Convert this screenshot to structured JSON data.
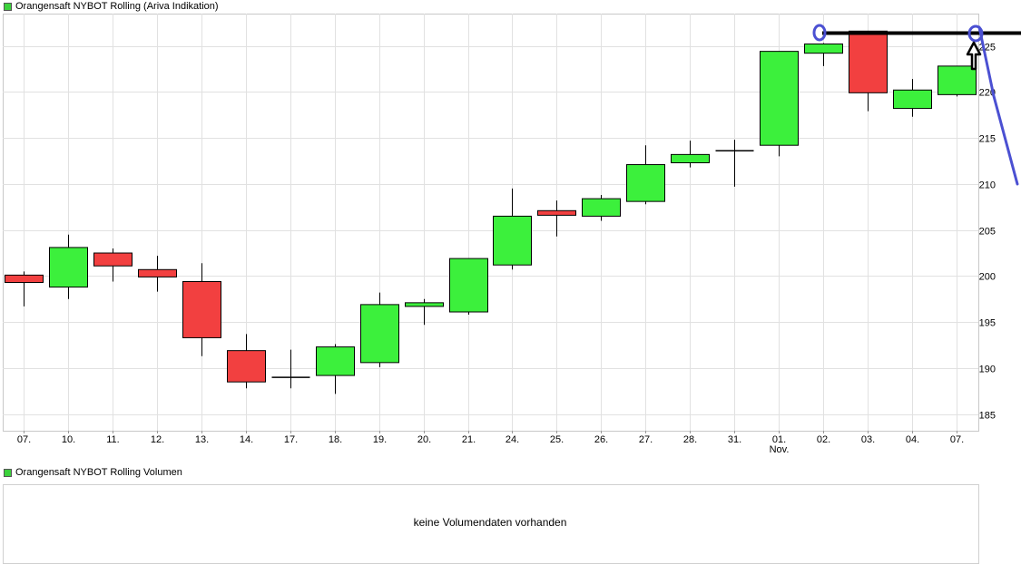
{
  "title": "Orangensaft NYBOT Rolling (Ariva Indikation)",
  "volume_title": "Orangensaft NYBOT Rolling Volumen",
  "volume_message": "keine Volumendaten vorhanden",
  "colors": {
    "up": "#3cf03c",
    "down": "#f24040",
    "legend_swatch": "#3cd23c",
    "annotation_black": "#000000",
    "annotation_blue": "#4b50d2",
    "grid": "#e1e1e1"
  },
  "chart_data": {
    "type": "candlestick",
    "title": "Orangensaft NYBOT Rolling (Ariva Indikation)",
    "x_sublabel": {
      "index": 17,
      "text": "Nov."
    },
    "y_ticks": [
      185,
      190,
      195,
      200,
      205,
      210,
      215,
      220,
      225
    ],
    "ylim": [
      183.2,
      228.5
    ],
    "grid": true,
    "candles": [
      {
        "date": "07.",
        "open": 200.1,
        "high": 200.5,
        "low": 196.7,
        "close": 199.3
      },
      {
        "date": "10.",
        "open": 198.8,
        "high": 204.5,
        "low": 197.5,
        "close": 203.1
      },
      {
        "date": "11.",
        "open": 202.5,
        "high": 203.0,
        "low": 199.4,
        "close": 201.1
      },
      {
        "date": "12.",
        "open": 200.7,
        "high": 202.2,
        "low": 198.3,
        "close": 199.9
      },
      {
        "date": "13.",
        "open": 199.4,
        "high": 201.4,
        "low": 191.3,
        "close": 193.3
      },
      {
        "date": "14.",
        "open": 191.9,
        "high": 193.7,
        "low": 187.8,
        "close": 188.5
      },
      {
        "date": "17.",
        "open": 189.0,
        "high": 192.0,
        "low": 187.8,
        "close": 189.0
      },
      {
        "date": "18.",
        "open": 189.2,
        "high": 192.6,
        "low": 187.2,
        "close": 192.3
      },
      {
        "date": "19.",
        "open": 190.6,
        "high": 198.2,
        "low": 190.1,
        "close": 196.9
      },
      {
        "date": "20.",
        "open": 196.7,
        "high": 197.5,
        "low": 194.7,
        "close": 197.1
      },
      {
        "date": "21.",
        "open": 196.1,
        "high": 201.9,
        "low": 195.8,
        "close": 201.9
      },
      {
        "date": "24.",
        "open": 201.2,
        "high": 209.5,
        "low": 200.7,
        "close": 206.5
      },
      {
        "date": "25.",
        "open": 207.1,
        "high": 208.2,
        "low": 204.3,
        "close": 206.6
      },
      {
        "date": "26.",
        "open": 206.5,
        "high": 208.8,
        "low": 206.0,
        "close": 208.4
      },
      {
        "date": "27.",
        "open": 208.1,
        "high": 214.2,
        "low": 207.8,
        "close": 212.1
      },
      {
        "date": "28.",
        "open": 212.3,
        "high": 214.7,
        "low": 211.8,
        "close": 213.2
      },
      {
        "date": "31.",
        "open": 213.6,
        "high": 214.8,
        "low": 209.7,
        "close": 213.6
      },
      {
        "date": "01.",
        "open": 214.2,
        "high": 224.4,
        "low": 213.0,
        "close": 224.4
      },
      {
        "date": "02.",
        "open": 224.2,
        "high": 225.3,
        "low": 222.8,
        "close": 225.2
      },
      {
        "date": "03.",
        "open": 226.6,
        "high": 226.6,
        "low": 217.9,
        "close": 219.9
      },
      {
        "date": "04.",
        "open": 218.2,
        "high": 221.4,
        "low": 217.3,
        "close": 220.2
      },
      {
        "date": "07.",
        "open": 219.7,
        "high": 222.8,
        "low": 219.5,
        "close": 222.8
      }
    ]
  }
}
